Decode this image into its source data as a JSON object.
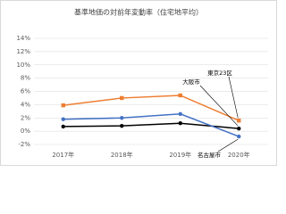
{
  "chart_data": {
    "type": "line",
    "title": "基準地価の対前年変動率（住宅地平均）",
    "categories": [
      "2017年",
      "2018年",
      "2019年",
      "2020年"
    ],
    "series": [
      {
        "name": "東京23区",
        "color": "#ed7d31",
        "marker": "square",
        "values": [
          3.9,
          5.0,
          5.4,
          1.6
        ]
      },
      {
        "name": "大阪市",
        "color": "#000000",
        "marker": "circle",
        "values": [
          0.7,
          0.8,
          1.2,
          0.4
        ]
      },
      {
        "name": "名古屋市",
        "color": "#4472c4",
        "marker": "circle",
        "values": [
          1.8,
          2.0,
          2.6,
          -0.8
        ]
      }
    ],
    "ylim": [
      -2,
      14
    ],
    "yticks": [
      {
        "value": -2,
        "label": "-2%"
      },
      {
        "value": 0,
        "label": "0%"
      },
      {
        "value": 2,
        "label": "2%"
      },
      {
        "value": 4,
        "label": "4%"
      },
      {
        "value": 6,
        "label": "6%"
      },
      {
        "value": 8,
        "label": "8%"
      },
      {
        "value": 10,
        "label": "10%"
      },
      {
        "value": 12,
        "label": "12%"
      },
      {
        "value": 14,
        "label": "14%"
      }
    ],
    "grid": true
  }
}
